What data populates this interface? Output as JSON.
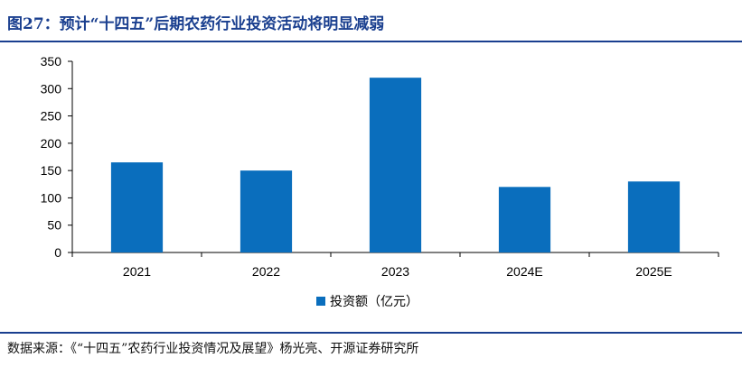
{
  "title": "图27：预计“十四五”后期农药行业投资活动将明显减弱",
  "source": "数据来源：《“十四五”农药行业投资情况及展望》杨光亮、开源证券研究所",
  "colors": {
    "bar": "#0a6ebd",
    "title": "#1a3f8f",
    "rule": "#1a3f8f"
  },
  "chart_data": {
    "type": "bar",
    "categories": [
      "2021",
      "2022",
      "2023",
      "2024E",
      "2025E"
    ],
    "series": [
      {
        "name": "投资额（亿元）",
        "values": [
          165,
          150,
          320,
          120,
          130
        ]
      }
    ],
    "title": "",
    "xlabel": "",
    "ylabel": "",
    "ylim": [
      0,
      350
    ],
    "yticks": [
      0,
      50,
      100,
      150,
      200,
      250,
      300,
      350
    ],
    "grid": false,
    "legend_position": "bottom"
  }
}
